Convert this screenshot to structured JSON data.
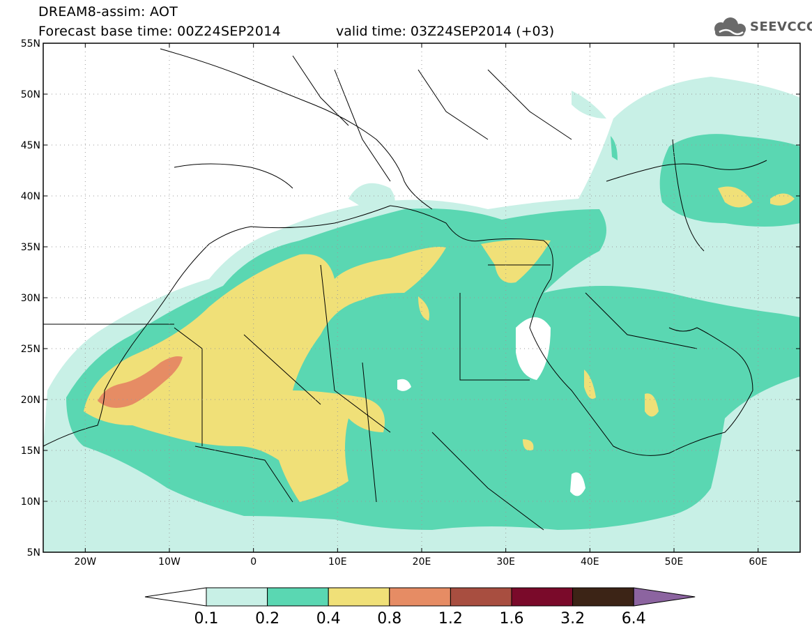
{
  "header": {
    "title_line1": "DREAM8-assim: AOT",
    "title_line2": "Forecast base time: 00Z24SEP2014",
    "valid_time": "valid time: 03Z24SEP2014 (+03)",
    "logo_text": "SEEVCCC"
  },
  "map": {
    "lon_range": [
      -25,
      65
    ],
    "lat_range": [
      5,
      55
    ],
    "lat_ticks": [
      "55N",
      "50N",
      "45N",
      "40N",
      "35N",
      "30N",
      "25N",
      "20N",
      "15N",
      "10N",
      "5N"
    ],
    "lon_ticks": [
      "20W",
      "10W",
      "0",
      "10E",
      "20E",
      "30E",
      "40E",
      "50E",
      "60E"
    ]
  },
  "colorbar": {
    "colors": [
      "#c8f0e6",
      "#5ad7b2",
      "#f0e078",
      "#e68c64",
      "#a84e40",
      "#7a0a2a",
      "#3c2416",
      "#8c64a0"
    ],
    "labels": [
      "0.1",
      "0.2",
      "0.4",
      "0.8",
      "1.2",
      "1.6",
      "3.2",
      "6.4"
    ]
  }
}
